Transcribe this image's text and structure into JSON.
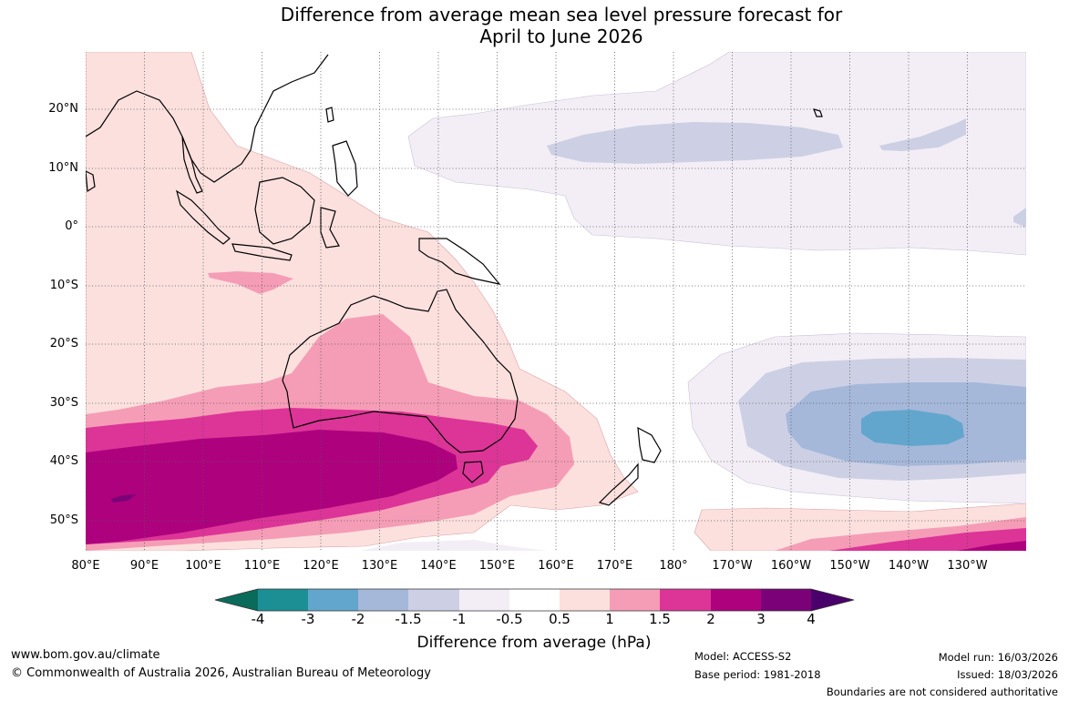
{
  "title": {
    "line1": "Difference from average mean sea level pressure forecast for",
    "line2": "April to June 2026"
  },
  "map": {
    "latitude_labels": [
      "20°N",
      "10°N",
      "0°",
      "10°S",
      "20°S",
      "30°S",
      "40°S",
      "50°S"
    ],
    "longitude_labels": [
      "80°E",
      "90°E",
      "100°E",
      "110°E",
      "120°E",
      "130°E",
      "140°E",
      "150°E",
      "160°E",
      "170°E",
      "180°",
      "170°W",
      "160°W",
      "150°W",
      "140°W",
      "130°W"
    ]
  },
  "colorbar": {
    "title": "Difference from average (hPa)",
    "ticks": [
      "-4",
      "-3",
      "-2",
      "-1.5",
      "-1",
      "-0.5",
      "0.5",
      "1",
      "1.5",
      "2",
      "3",
      "4"
    ],
    "colors": {
      "below_-4": "#0b6b5b",
      "-4_-3": "#1b8f94",
      "-3_-2": "#63a6cd",
      "-2_-1.5": "#a5b8da",
      "-1.5_-1": "#cdd0e4",
      "-1_-0.5": "#f3eef6",
      "-0.5_0.5": "#ffffff",
      "0.5_1": "#fbe0de",
      "1_1.5": "#f59db6",
      "1.5_2": "#dd3497",
      "2_3": "#ae017e",
      "3_4": "#7a0177",
      "above_4": "#49006a"
    }
  },
  "footer": {
    "website": "www.bom.gov.au/climate",
    "copyright": "© Commonwealth of Australia 2026, Australian Bureau of Meteorology",
    "model": "Model: ACCESS-S2",
    "base_period": "Base period: 1981-2018",
    "model_run": "Model run: 16/03/2026",
    "issued": "Issued: 18/03/2026",
    "disclaimer": "Boundaries are not considered authoritative"
  }
}
